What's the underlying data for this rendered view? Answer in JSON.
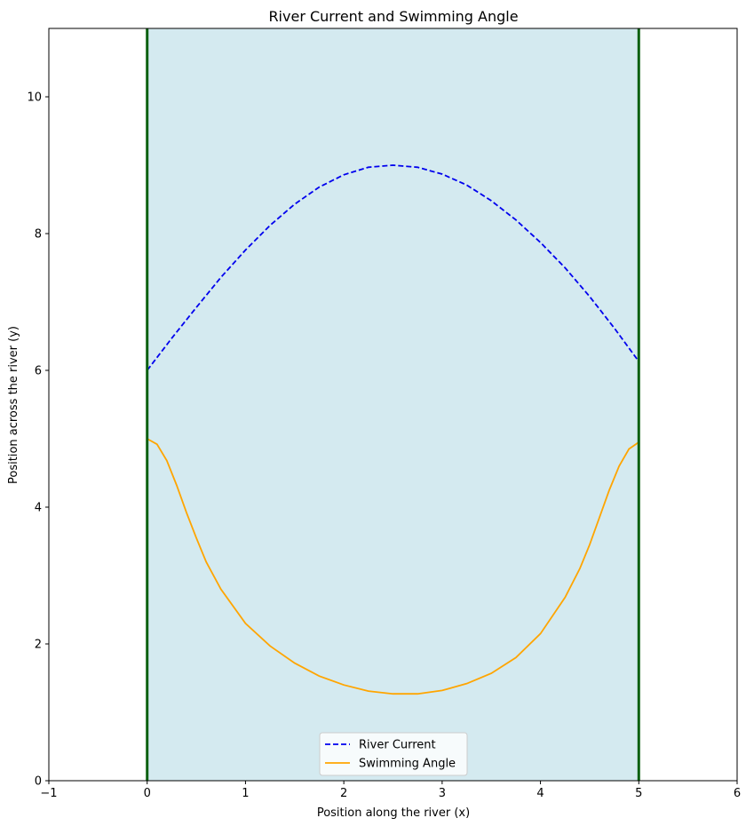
{
  "chart_data": {
    "type": "line",
    "title": "River Current and Swimming Angle",
    "xlabel": "Position along the river (x)",
    "ylabel": "Position across the river (y)",
    "xlim": [
      -1,
      6
    ],
    "ylim": [
      0,
      11
    ],
    "xticks": [
      -1,
      0,
      1,
      2,
      3,
      4,
      5,
      6
    ],
    "yticks": [
      0,
      2,
      4,
      6,
      8,
      10
    ],
    "legend_position": "lower center",
    "grid": false,
    "shaded_region": {
      "x": [
        0,
        5
      ],
      "color": "#d4eaf0"
    },
    "banks": [
      {
        "x": 0,
        "color": "#0b6010"
      },
      {
        "x": 5,
        "color": "#0b6010"
      }
    ],
    "series": [
      {
        "name": "River Current",
        "style": "dashed",
        "color": "#0000ee",
        "x": [
          0,
          0.25,
          0.5,
          0.75,
          1.0,
          1.25,
          1.5,
          1.75,
          2.0,
          2.25,
          2.5,
          2.75,
          3.0,
          3.25,
          3.5,
          3.75,
          4.0,
          4.25,
          4.5,
          4.75,
          5.0
        ],
        "y": [
          6.0,
          6.47,
          6.92,
          7.36,
          7.76,
          8.12,
          8.43,
          8.68,
          8.86,
          8.97,
          9.0,
          8.97,
          8.87,
          8.71,
          8.48,
          8.2,
          7.87,
          7.5,
          7.08,
          6.62,
          6.13
        ]
      },
      {
        "name": "Swimming Angle",
        "style": "solid",
        "color": "#ffa500",
        "x": [
          0,
          0.1,
          0.2,
          0.3,
          0.4,
          0.5,
          0.6,
          0.75,
          1.0,
          1.25,
          1.5,
          1.75,
          2.0,
          2.25,
          2.5,
          2.75,
          3.0,
          3.25,
          3.5,
          3.75,
          4.0,
          4.25,
          4.4,
          4.5,
          4.6,
          4.7,
          4.8,
          4.9,
          5.0
        ],
        "y": [
          5.0,
          4.92,
          4.68,
          4.32,
          3.92,
          3.55,
          3.2,
          2.8,
          2.3,
          1.97,
          1.72,
          1.53,
          1.4,
          1.31,
          1.27,
          1.27,
          1.32,
          1.42,
          1.57,
          1.8,
          2.15,
          2.68,
          3.1,
          3.45,
          3.85,
          4.25,
          4.6,
          4.85,
          4.95
        ]
      }
    ]
  }
}
